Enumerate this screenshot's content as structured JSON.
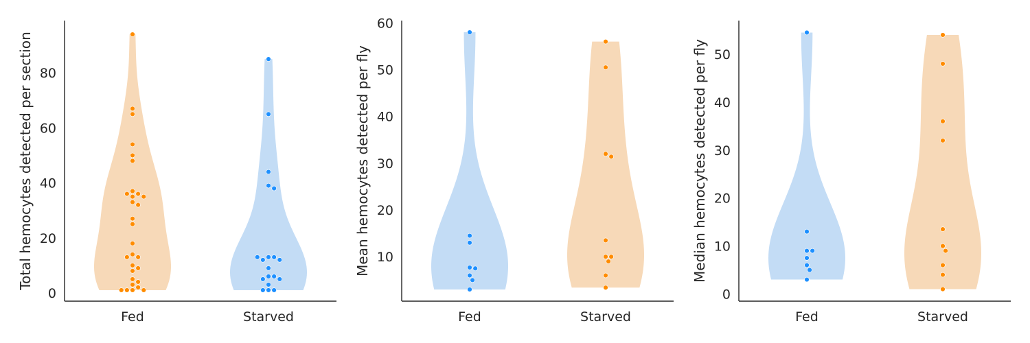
{
  "chart_data": [
    {
      "type": "violin",
      "ylabel": "Total hemocytes detected per section",
      "ylim": [
        -3,
        99
      ],
      "yticks": [
        0,
        20,
        40,
        60,
        80
      ],
      "categories": [
        "Fed",
        "Starved"
      ],
      "series": [
        {
          "category": "Fed",
          "fill": "#f7d9b8",
          "point_color": "#ff8c00",
          "values": [
            94,
            67,
            65,
            54,
            50,
            48,
            37,
            36,
            36,
            35,
            35,
            33,
            32,
            27,
            25,
            18,
            14,
            13,
            13,
            10,
            9,
            8,
            5,
            4,
            3,
            2,
            1,
            1,
            1,
            1
          ]
        },
        {
          "category": "Starved",
          "fill": "#c3dcf5",
          "point_color": "#1e90ff",
          "values": [
            85,
            65,
            44,
            39,
            38,
            13,
            13,
            12,
            12,
            13,
            9,
            6,
            6,
            5,
            5,
            3,
            1,
            1,
            1
          ]
        }
      ]
    },
    {
      "type": "violin",
      "ylabel": "Mean hemocytes detected per fly",
      "ylim": [
        0.5,
        60.5
      ],
      "yticks": [
        10,
        20,
        30,
        40,
        50,
        60
      ],
      "categories": [
        "Fed",
        "Starved"
      ],
      "series": [
        {
          "category": "Fed",
          "fill": "#c3dcf5",
          "point_color": "#1e90ff",
          "values": [
            58,
            14.5,
            13,
            7.7,
            7.5,
            6,
            5,
            3
          ]
        },
        {
          "category": "Starved",
          "fill": "#f7d9b8",
          "point_color": "#ff8c00",
          "values": [
            56,
            50.5,
            32,
            31.4,
            13.5,
            10,
            10,
            9,
            6,
            3.4
          ]
        }
      ]
    },
    {
      "type": "violin",
      "ylabel": "Median hemocytes detected per fly",
      "ylim": [
        -1.5,
        57
      ],
      "yticks": [
        0,
        10,
        20,
        30,
        40,
        50
      ],
      "categories": [
        "Fed",
        "Starved"
      ],
      "series": [
        {
          "category": "Fed",
          "fill": "#c3dcf5",
          "point_color": "#1e90ff",
          "values": [
            54.5,
            13,
            9,
            9,
            7.5,
            6,
            5,
            3
          ]
        },
        {
          "category": "Starved",
          "fill": "#f7d9b8",
          "point_color": "#ff8c00",
          "values": [
            54,
            48,
            36,
            32,
            13.5,
            10,
            9,
            6,
            4,
            1
          ]
        }
      ]
    }
  ]
}
